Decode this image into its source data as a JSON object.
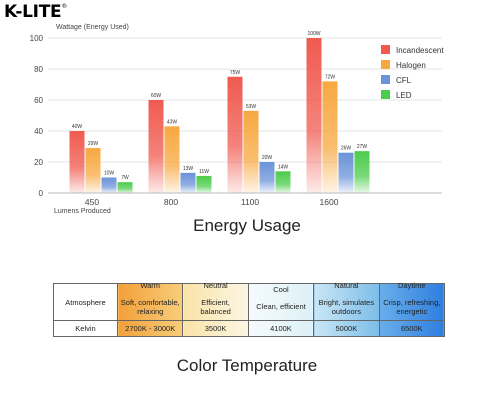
{
  "brand": {
    "logo_text": "K-LITE",
    "logo_mark": "®"
  },
  "chart_data": {
    "type": "bar",
    "ylabel": "Wattage (Energy Used)",
    "xlabel": "Lumens Produced",
    "ylim": [
      0,
      100
    ],
    "yticks": [
      0,
      20,
      40,
      60,
      80,
      100
    ],
    "categories": [
      "450",
      "800",
      "1100",
      "1600"
    ],
    "series": [
      {
        "name": "Incandescent",
        "values": [
          40,
          60,
          75,
          100
        ],
        "labels": [
          "40W",
          "60W",
          "75W",
          "100W"
        ],
        "color": "#f05a4f"
      },
      {
        "name": "Halogen",
        "values": [
          29,
          43,
          53,
          72
        ],
        "labels": [
          "29W",
          "43W",
          "53W",
          "72W"
        ],
        "color": "#f8a840"
      },
      {
        "name": "CFL",
        "values": [
          10,
          13,
          20,
          26
        ],
        "labels": [
          "10W",
          "13W",
          "20W",
          "26W"
        ],
        "color": "#6b93d8"
      },
      {
        "name": "LED",
        "values": [
          7,
          11,
          14,
          27
        ],
        "labels": [
          "7W",
          "11W",
          "14W",
          "27W"
        ],
        "color": "#4ccc4c"
      }
    ],
    "grid": true,
    "legend": "top-right"
  },
  "energy_title": "Energy Usage",
  "color_temp": {
    "title": "Color Temperature",
    "row_labels": [
      "Atmosphere",
      "Kelvin"
    ],
    "columns": [
      {
        "name": "Warm",
        "description": "Soft, comfortable, relaxing",
        "kelvin": "2700K - 3000K"
      },
      {
        "name": "Neutral",
        "description": "Efficient, balanced",
        "kelvin": "3500K"
      },
      {
        "name": "Cool",
        "description": "Clean, efficient",
        "kelvin": "4100K"
      },
      {
        "name": "Natural",
        "description": "Bright, simulates outdoors",
        "kelvin": "5000K"
      },
      {
        "name": "Daytime",
        "description": "Crisp, refreshing, energetic",
        "kelvin": "6500K"
      }
    ]
  }
}
